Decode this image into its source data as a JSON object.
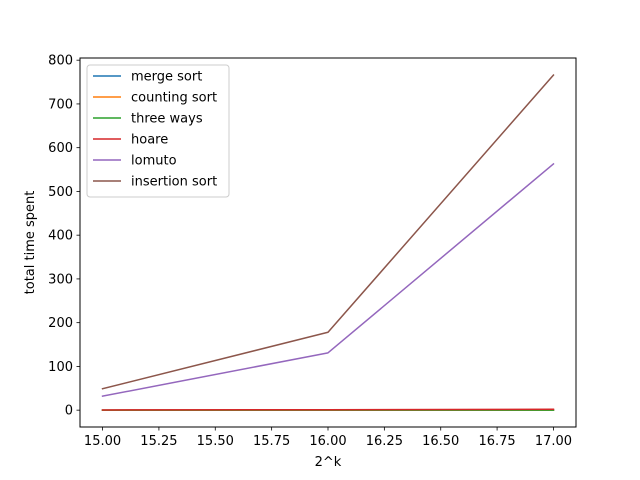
{
  "chart_data": {
    "type": "line",
    "title": "",
    "xlabel": "2^k",
    "ylabel": "total time spent",
    "x": [
      15,
      16,
      17
    ],
    "xlim": [
      14.9,
      17.1
    ],
    "ylim": [
      -38.5,
      805
    ],
    "xticks": [
      15.0,
      15.25,
      15.5,
      15.75,
      16.0,
      16.25,
      16.5,
      16.75,
      17.0
    ],
    "xtick_labels": [
      "15.00",
      "15.25",
      "15.50",
      "15.75",
      "16.00",
      "16.25",
      "16.50",
      "16.75",
      "17.00"
    ],
    "yticks": [
      0,
      100,
      200,
      300,
      400,
      500,
      600,
      700,
      800
    ],
    "ytick_labels": [
      "0",
      "100",
      "200",
      "300",
      "400",
      "500",
      "600",
      "700",
      "800"
    ],
    "grid": false,
    "legend_position": "top-left",
    "series": [
      {
        "name": "merge sort",
        "color": "#1f77b4",
        "values": [
          0.03,
          0.07,
          0.14
        ]
      },
      {
        "name": "counting sort",
        "color": "#ff7f0e",
        "values": [
          0.01,
          0.02,
          0.03
        ]
      },
      {
        "name": "three ways",
        "color": "#2ca02c",
        "values": [
          0.03,
          0.06,
          0.12
        ]
      },
      {
        "name": "hoare",
        "color": "#d62728",
        "values": [
          0.5,
          1.0,
          2.0
        ]
      },
      {
        "name": "lomuto",
        "color": "#9467bd",
        "values": [
          32,
          131,
          563
        ]
      },
      {
        "name": "insertion sort",
        "color": "#8c564b",
        "values": [
          49,
          178,
          766
        ]
      }
    ]
  }
}
